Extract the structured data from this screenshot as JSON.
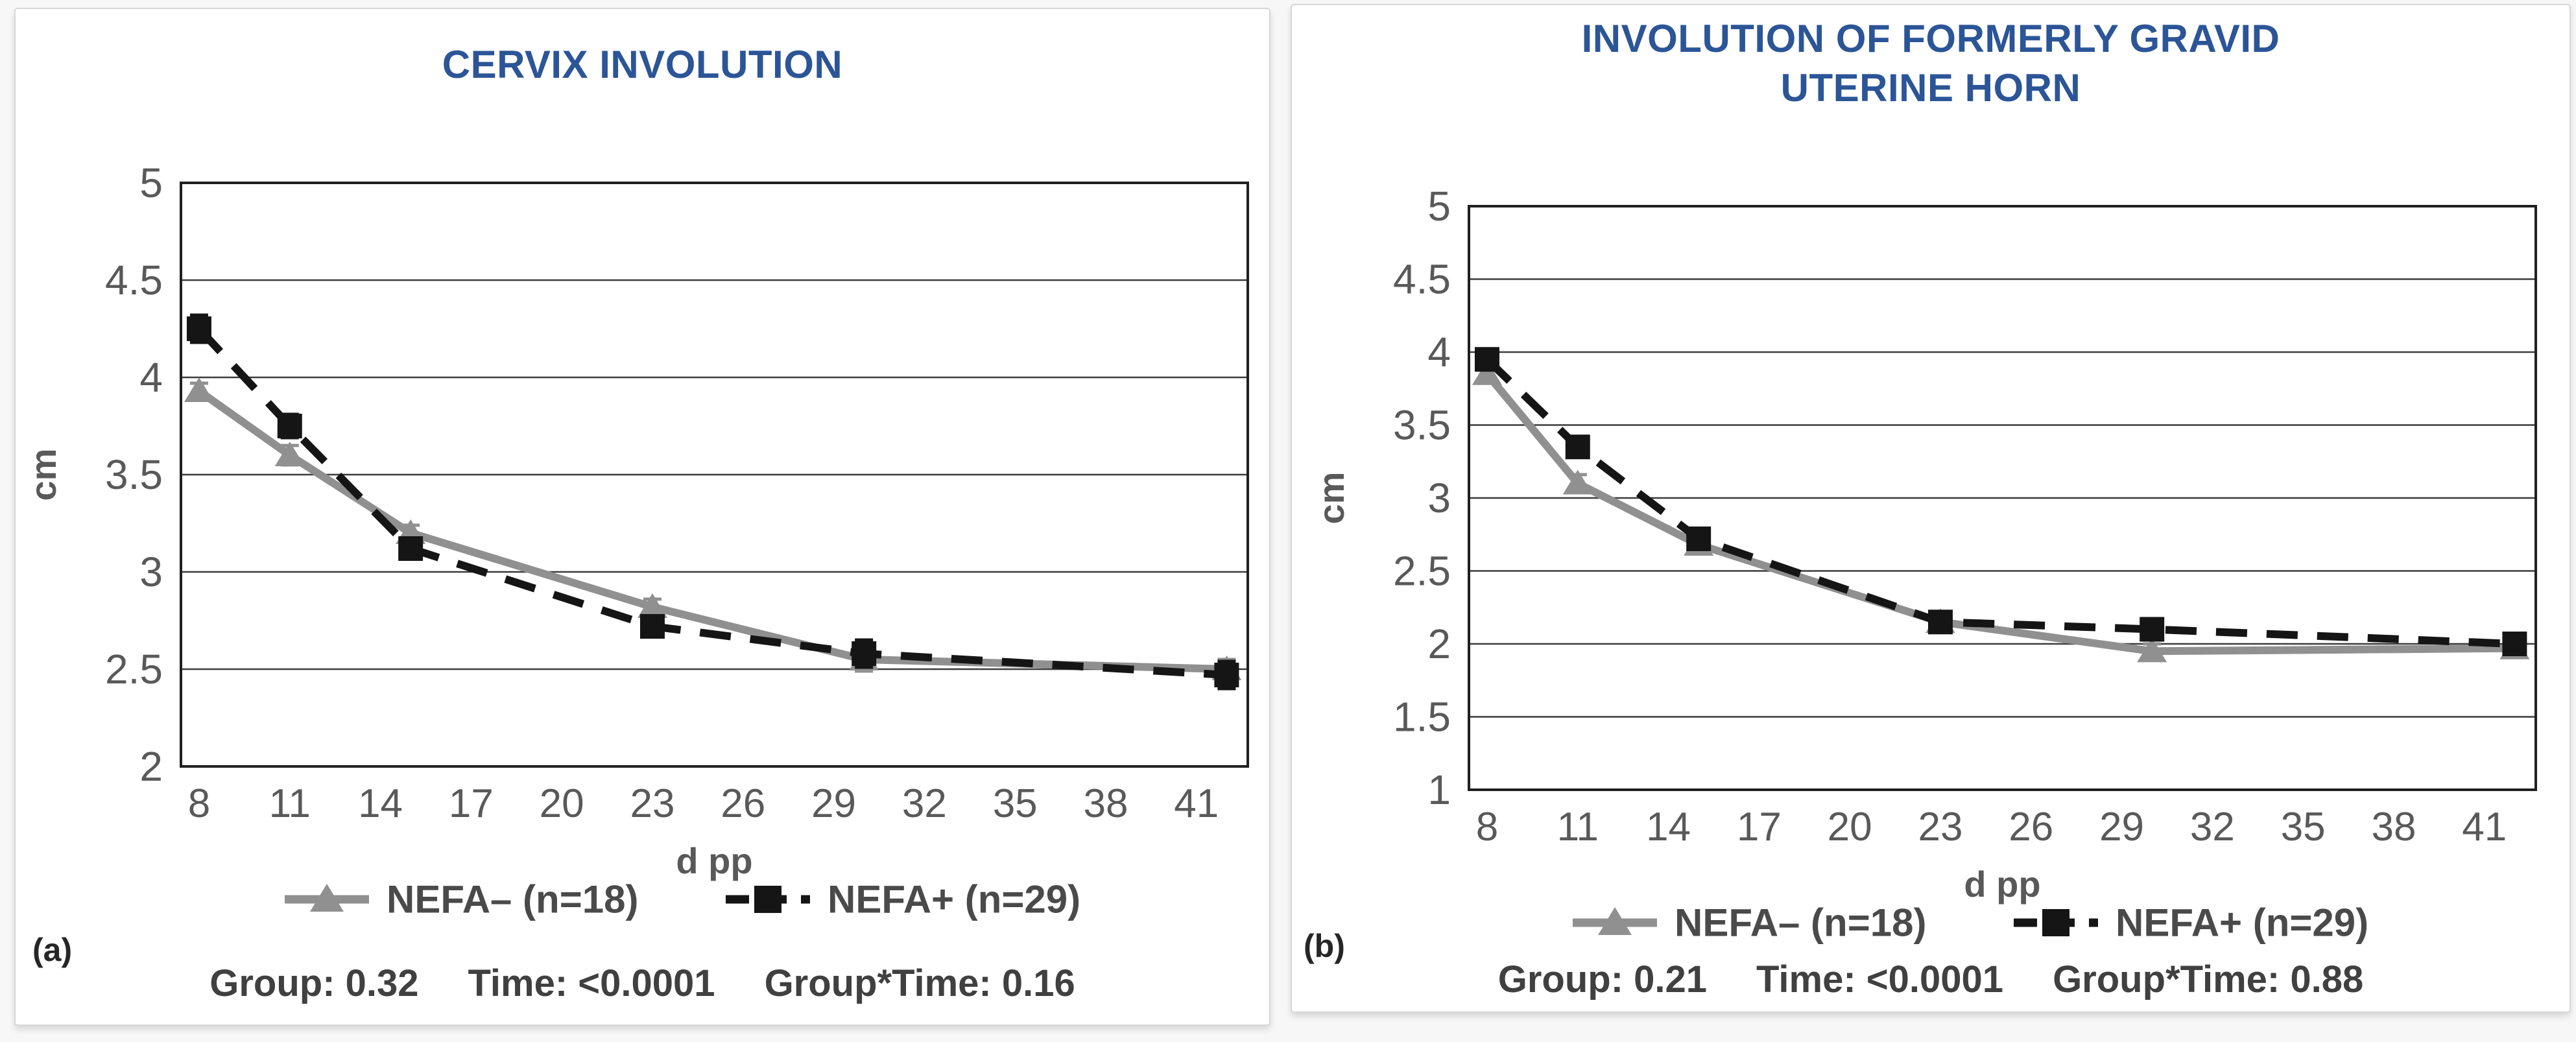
{
  "colors": {
    "title_blue": "#2b5597",
    "axis_text": "#595959",
    "legend_text": "#4a4a4a",
    "stats_text": "#404040",
    "gridline": "#3c3c3c",
    "plot_border": "#1f1f1f",
    "series_gray": "#909090",
    "series_black": "#151515",
    "panel_border": "#d6d6d6",
    "panel_bg": "#ffffff"
  },
  "chart_data": [
    {
      "type": "line",
      "title": "CERVIX INVOLUTION",
      "title_lines": [
        "CERVIX INVOLUTION"
      ],
      "xlabel": "d pp",
      "ylabel": "cm",
      "x": [
        8,
        11,
        15,
        23,
        30,
        42
      ],
      "x_ticks": [
        8,
        11,
        14,
        17,
        20,
        23,
        26,
        29,
        32,
        35,
        38,
        41
      ],
      "xlim": [
        7.4,
        42.7
      ],
      "y_ticks": [
        5,
        4.5,
        4,
        3.5,
        3,
        2.5,
        2
      ],
      "ylim": [
        2,
        5
      ],
      "grid": true,
      "legend_position": "bottom",
      "series": [
        {
          "name": "NEFA– (n=18)",
          "color": "gray",
          "marker": "triangle",
          "dash": false,
          "values": [
            3.93,
            3.6,
            3.2,
            2.82,
            2.55,
            2.5
          ],
          "errors": [
            0.04,
            0.05,
            0.04,
            0.04,
            0.06,
            0.05
          ]
        },
        {
          "name": "NEFA+ (n=29)",
          "color": "black",
          "marker": "square",
          "dash": true,
          "values": [
            4.25,
            3.75,
            3.12,
            2.72,
            2.58,
            2.47
          ],
          "errors": [
            0.07,
            0.06,
            0.05,
            0.04,
            0.07,
            0.07
          ]
        }
      ],
      "annotations": {
        "panel_label": "(a)",
        "group": "Group: 0.32",
        "time": "Time: <0.0001",
        "interaction": "Group*Time: 0.16"
      }
    },
    {
      "type": "line",
      "title": "INVOLUTION OF FORMERLY GRAVID UTERINE HORN",
      "title_lines": [
        "INVOLUTION OF FORMERLY GRAVID",
        "UTERINE HORN"
      ],
      "xlabel": "d pp",
      "ylabel": "cm",
      "x": [
        8,
        11,
        15,
        23,
        30,
        42
      ],
      "x_ticks": [
        8,
        11,
        14,
        17,
        20,
        23,
        26,
        29,
        32,
        35,
        38,
        41
      ],
      "xlim": [
        7.4,
        42.7
      ],
      "y_ticks": [
        5,
        4.5,
        4,
        3.5,
        3,
        2.5,
        2,
        1.5,
        1
      ],
      "ylim": [
        1,
        5
      ],
      "grid": true,
      "legend_position": "bottom",
      "series": [
        {
          "name": "NEFA– (n=18)",
          "color": "gray",
          "marker": "triangle",
          "dash": false,
          "values": [
            3.85,
            3.1,
            2.68,
            2.15,
            1.95,
            1.97
          ],
          "errors": [
            0.05,
            0.06,
            0.04,
            0.04,
            0.05,
            0.04
          ]
        },
        {
          "name": "NEFA+ (n=29)",
          "color": "black",
          "marker": "square",
          "dash": true,
          "values": [
            3.95,
            3.35,
            2.72,
            2.15,
            2.1,
            2.0
          ],
          "errors": [
            0.06,
            0.07,
            0.05,
            0.04,
            0.06,
            0.07
          ]
        }
      ],
      "annotations": {
        "panel_label": "(b)",
        "group": "Group: 0.21",
        "time": "Time: <0.0001",
        "interaction": "Group*Time: 0.88"
      }
    }
  ]
}
